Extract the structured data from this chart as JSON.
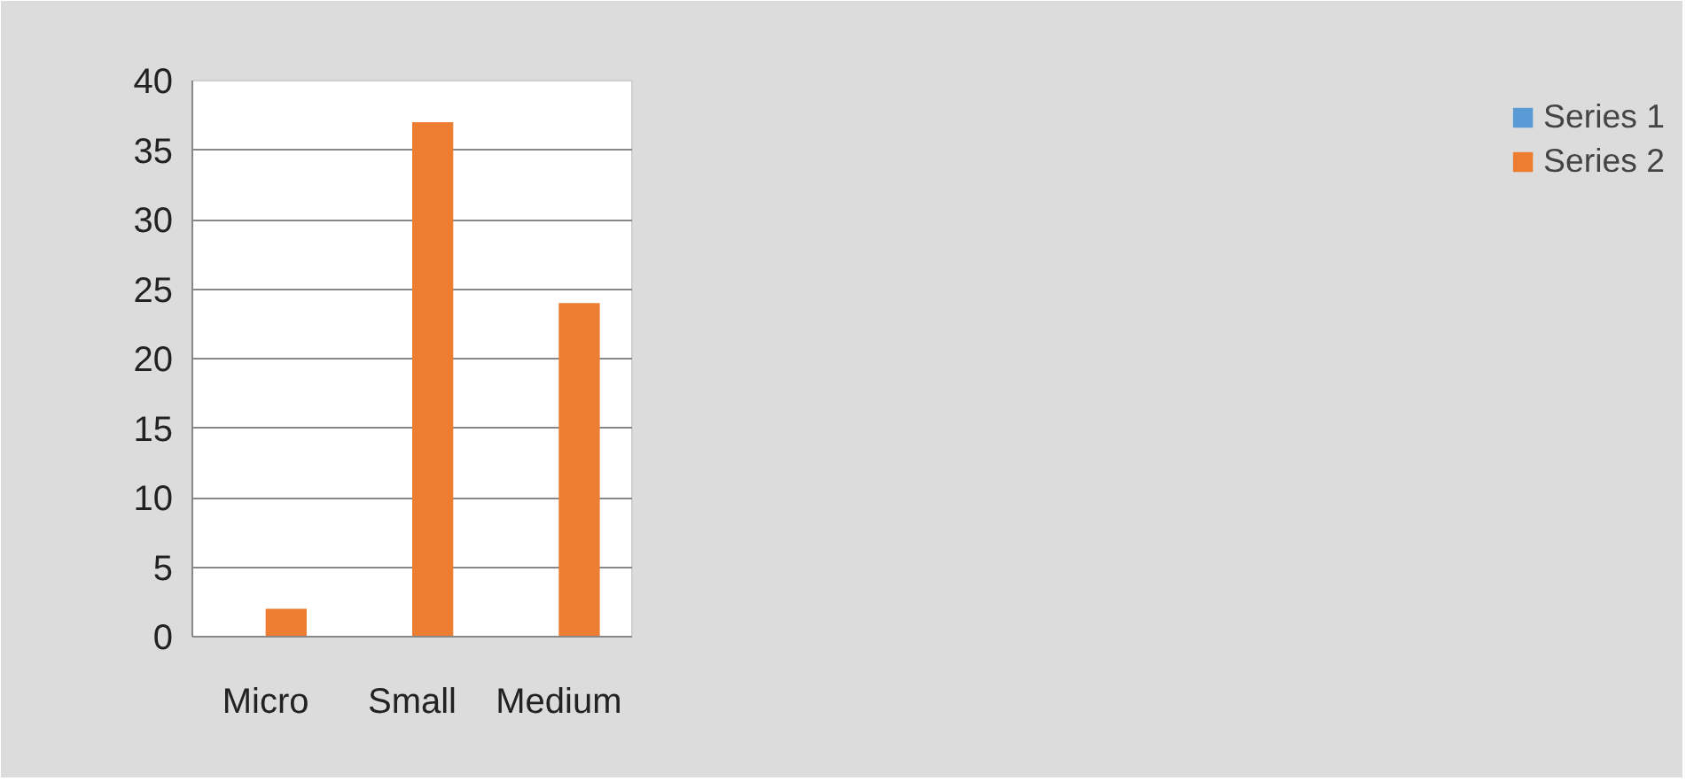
{
  "chart_data": {
    "type": "bar",
    "categories": [
      "Micro",
      "Small",
      "Medium"
    ],
    "series": [
      {
        "name": "Series 1",
        "color": "#5b9bd5",
        "values": [
          0,
          0,
          0
        ]
      },
      {
        "name": "Series 2",
        "color": "#ed7d31",
        "values": [
          2,
          37,
          24
        ]
      }
    ],
    "ylim": [
      0,
      40
    ],
    "yticks": [
      0,
      5,
      10,
      15,
      20,
      25,
      30,
      35,
      40
    ],
    "grid": "y",
    "legend": "right"
  }
}
